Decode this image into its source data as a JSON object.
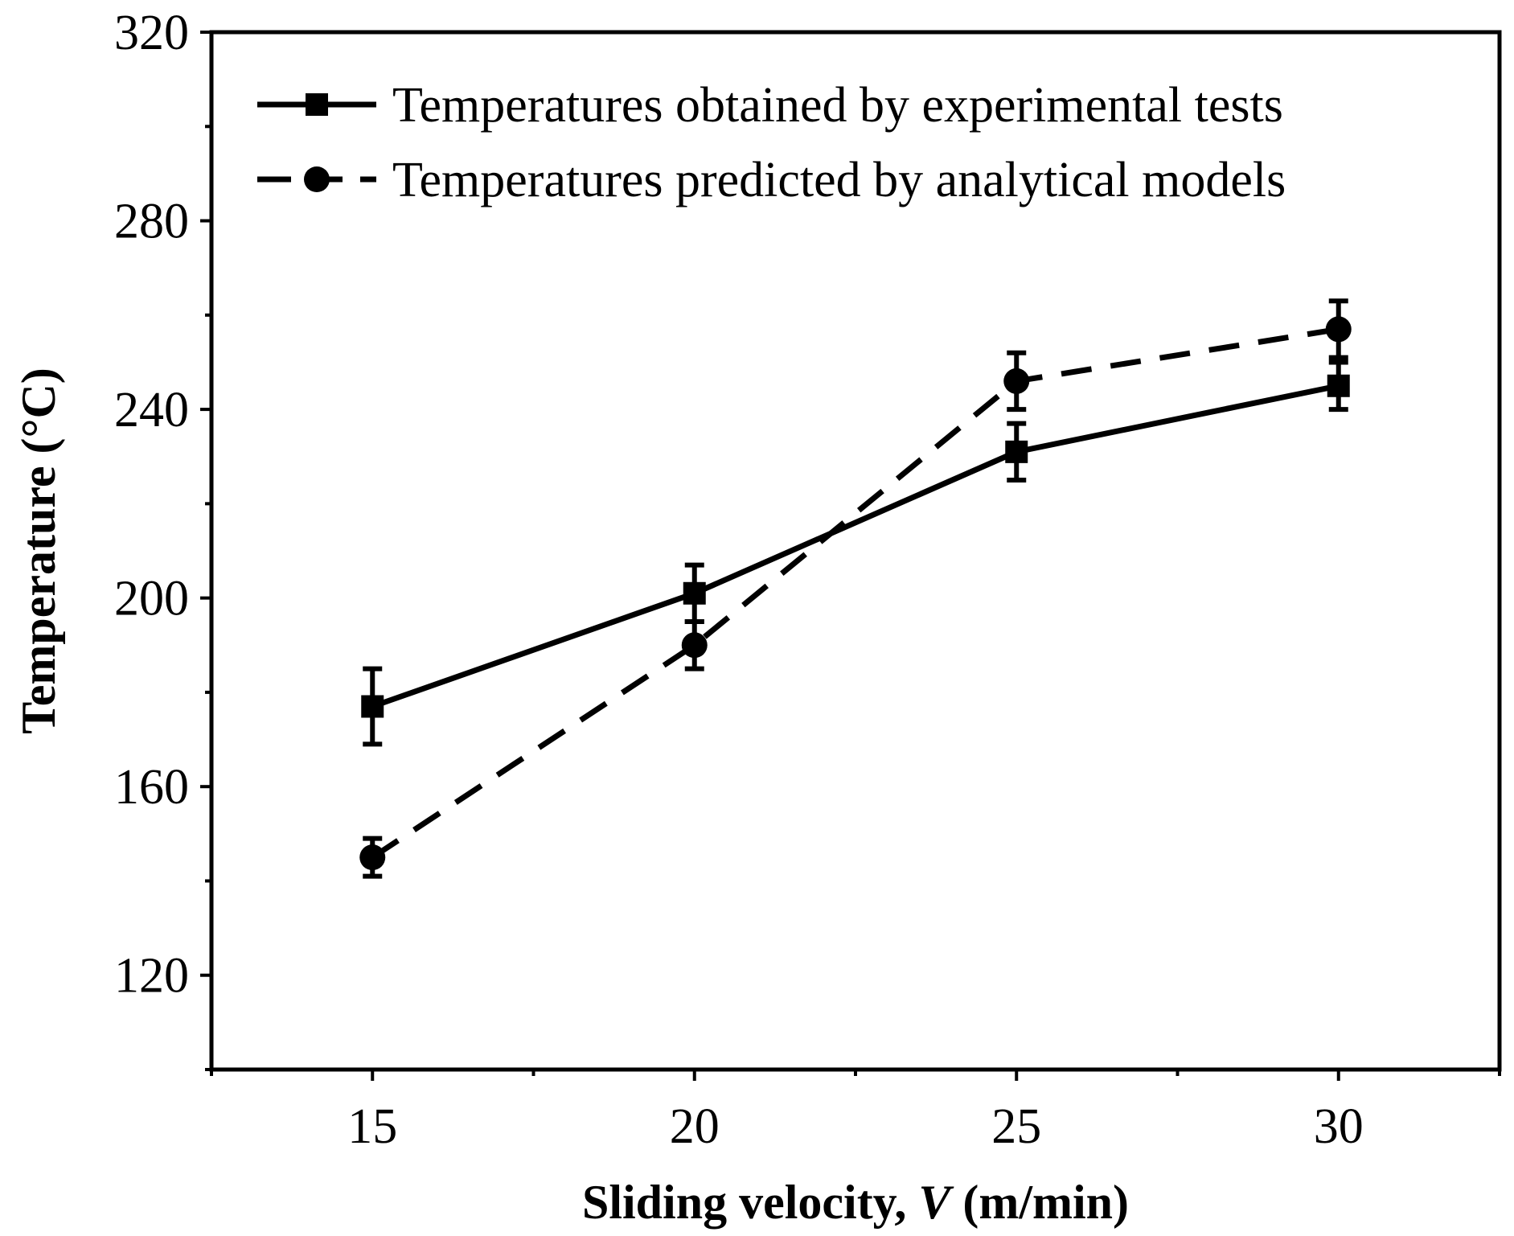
{
  "chart_data": {
    "type": "line",
    "title": "",
    "xlabel_prefix": "Sliding velocity, ",
    "xlabel_var": "V",
    "xlabel_suffix": " (m/min)",
    "ylabel": "Temperature (°C)",
    "xlim": [
      12.5,
      32.5
    ],
    "ylim": [
      100,
      320
    ],
    "x_ticks": [
      15,
      20,
      25,
      30
    ],
    "x_tick_labels": [
      "15",
      "20",
      "25",
      "30"
    ],
    "x_minor_ticks": [
      12.5,
      17.5,
      22.5,
      27.5,
      32.5
    ],
    "y_ticks": [
      120,
      160,
      200,
      240,
      280,
      320
    ],
    "y_tick_labels": [
      "120",
      "160",
      "200",
      "240",
      "280",
      "320"
    ],
    "y_minor_ticks": [
      100,
      140,
      180,
      220,
      260,
      300
    ],
    "grid": false,
    "legend_position": "top-left",
    "x": [
      15,
      20,
      25,
      30
    ],
    "series": [
      {
        "name": "Temperatures obtained by experimental tests",
        "values": [
          177,
          201,
          231,
          245
        ],
        "errors": [
          8,
          6,
          6,
          5
        ],
        "marker": "square",
        "line_style": "solid",
        "color": "#000000"
      },
      {
        "name": "Temperatures predicted by analytical models",
        "values": [
          145,
          190,
          246,
          257
        ],
        "errors": [
          4,
          5,
          6,
          6
        ],
        "marker": "circle",
        "line_style": "dashed",
        "color": "#000000"
      }
    ]
  }
}
